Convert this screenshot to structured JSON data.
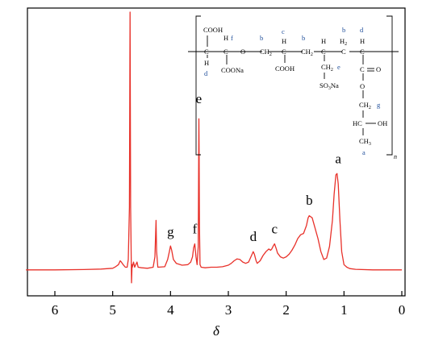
{
  "chart_data": {
    "type": "line",
    "title": "",
    "xlabel": "δ",
    "ylabel": "",
    "xlim": [
      6.5,
      0
    ],
    "x_reversed": true,
    "x_ticks": [
      6,
      5,
      4,
      3,
      2,
      1,
      0
    ],
    "x_tick_labels": [
      "6",
      "5",
      "4",
      "3",
      "2",
      "1",
      "0"
    ],
    "y_ticks_shown": false,
    "ylim": [
      0,
      1.0
    ],
    "grid": false,
    "legend": null,
    "colors": {
      "line": "#e8312a",
      "axis": "#000000",
      "inset_letter": "#1f4e9a"
    },
    "series": [
      {
        "color": "#e8312a",
        "points": [
          [
            6.5,
            0.01
          ],
          [
            6.0,
            0.01
          ],
          [
            5.5,
            0.011
          ],
          [
            5.2,
            0.013
          ],
          [
            5.0,
            0.016
          ],
          [
            4.95,
            0.022
          ],
          [
            4.9,
            0.03
          ],
          [
            4.87,
            0.045
          ],
          [
            4.85,
            0.04
          ],
          [
            4.82,
            0.03
          ],
          [
            4.78,
            0.02
          ],
          [
            4.75,
            0.02
          ],
          [
            4.73,
            0.05
          ],
          [
            4.71,
            0.25
          ],
          [
            4.7,
            1.0
          ],
          [
            4.69,
            0.25
          ],
          [
            4.675,
            -0.04
          ],
          [
            4.665,
            0.03
          ],
          [
            4.66,
            0.02
          ],
          [
            4.64,
            0.04
          ],
          [
            4.62,
            0.02
          ],
          [
            4.6,
            0.03
          ],
          [
            4.58,
            0.04
          ],
          [
            4.56,
            0.02
          ],
          [
            4.5,
            0.018
          ],
          [
            4.4,
            0.016
          ],
          [
            4.3,
            0.02
          ],
          [
            4.27,
            0.06
          ],
          [
            4.25,
            0.2
          ],
          [
            4.24,
            0.08
          ],
          [
            4.22,
            0.02
          ],
          [
            4.1,
            0.022
          ],
          [
            4.05,
            0.05
          ],
          [
            4.02,
            0.08
          ],
          [
            4.0,
            0.102
          ],
          [
            3.98,
            0.085
          ],
          [
            3.95,
            0.05
          ],
          [
            3.9,
            0.035
          ],
          [
            3.8,
            0.028
          ],
          [
            3.7,
            0.03
          ],
          [
            3.65,
            0.04
          ],
          [
            3.62,
            0.06
          ],
          [
            3.6,
            0.095
          ],
          [
            3.58,
            0.11
          ],
          [
            3.56,
            0.06
          ],
          [
            3.54,
            0.03
          ],
          [
            3.52,
            0.1
          ],
          [
            3.51,
            0.59
          ],
          [
            3.505,
            0.45
          ],
          [
            3.5,
            0.18
          ],
          [
            3.49,
            0.03
          ],
          [
            3.47,
            0.02
          ],
          [
            3.4,
            0.018
          ],
          [
            3.3,
            0.02
          ],
          [
            3.2,
            0.02
          ],
          [
            3.1,
            0.022
          ],
          [
            3.0,
            0.028
          ],
          [
            2.95,
            0.035
          ],
          [
            2.9,
            0.045
          ],
          [
            2.85,
            0.052
          ],
          [
            2.8,
            0.05
          ],
          [
            2.75,
            0.04
          ],
          [
            2.7,
            0.035
          ],
          [
            2.65,
            0.04
          ],
          [
            2.6,
            0.065
          ],
          [
            2.57,
            0.08
          ],
          [
            2.55,
            0.07
          ],
          [
            2.52,
            0.045
          ],
          [
            2.5,
            0.035
          ],
          [
            2.45,
            0.045
          ],
          [
            2.4,
            0.065
          ],
          [
            2.35,
            0.08
          ],
          [
            2.3,
            0.09
          ],
          [
            2.27,
            0.085
          ],
          [
            2.25,
            0.09
          ],
          [
            2.22,
            0.103
          ],
          [
            2.2,
            0.11
          ],
          [
            2.17,
            0.09
          ],
          [
            2.15,
            0.075
          ],
          [
            2.1,
            0.06
          ],
          [
            2.05,
            0.055
          ],
          [
            2.0,
            0.06
          ],
          [
            1.95,
            0.07
          ],
          [
            1.9,
            0.085
          ],
          [
            1.85,
            0.105
          ],
          [
            1.8,
            0.13
          ],
          [
            1.75,
            0.145
          ],
          [
            1.7,
            0.15
          ],
          [
            1.65,
            0.18
          ],
          [
            1.62,
            0.21
          ],
          [
            1.6,
            0.218
          ],
          [
            1.55,
            0.21
          ],
          [
            1.5,
            0.17
          ],
          [
            1.45,
            0.13
          ],
          [
            1.4,
            0.08
          ],
          [
            1.35,
            0.05
          ],
          [
            1.3,
            0.055
          ],
          [
            1.25,
            0.1
          ],
          [
            1.2,
            0.2
          ],
          [
            1.17,
            0.3
          ],
          [
            1.14,
            0.375
          ],
          [
            1.12,
            0.38
          ],
          [
            1.1,
            0.34
          ],
          [
            1.07,
            0.2
          ],
          [
            1.04,
            0.08
          ],
          [
            1.0,
            0.03
          ],
          [
            0.95,
            0.02
          ],
          [
            0.9,
            0.015
          ],
          [
            0.8,
            0.012
          ],
          [
            0.5,
            0.01
          ],
          [
            0.0,
            0.01
          ]
        ]
      }
    ],
    "annotations": [
      {
        "text": "a",
        "x": 1.1,
        "y": 0.42
      },
      {
        "text": "b",
        "x": 1.6,
        "y": 0.26
      },
      {
        "text": "c",
        "x": 2.2,
        "y": 0.15
      },
      {
        "text": "d",
        "x": 2.57,
        "y": 0.12
      },
      {
        "text": "e",
        "x": 3.51,
        "y": 0.65
      },
      {
        "text": "f",
        "x": 3.58,
        "y": 0.15
      },
      {
        "text": "g",
        "x": 4.0,
        "y": 0.14
      }
    ]
  },
  "structure_inset": {
    "labels": {
      "cooh_top": "COOH",
      "coona": "COONa",
      "cooh_mid": "COOH",
      "so3na": "SO3Na",
      "oh": "OH",
      "ch3": "CH3",
      "o_ether": "O",
      "o_ester": "O",
      "carbonyl_o": "O",
      "subscript_n": "n"
    },
    "letters": [
      "d",
      "f",
      "b",
      "c",
      "b",
      "e",
      "b",
      "d",
      "g",
      "a"
    ]
  }
}
